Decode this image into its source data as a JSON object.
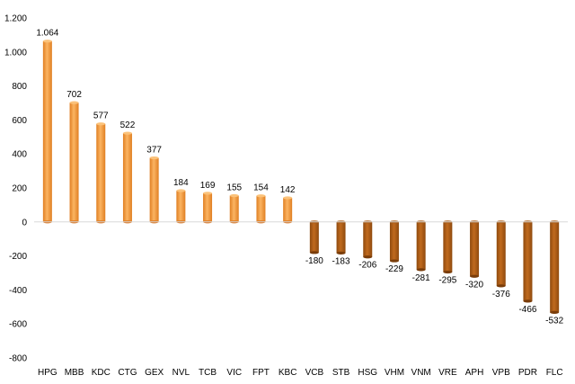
{
  "chart_data": {
    "type": "bar",
    "categories": [
      "HPG",
      "MBB",
      "KDC",
      "CTG",
      "GEX",
      "NVL",
      "TCB",
      "VIC",
      "FPT",
      "KBC",
      "VCB",
      "STB",
      "HSG",
      "VHM",
      "VNM",
      "VRE",
      "APH",
      "VPB",
      "PDR",
      "FLC"
    ],
    "values": [
      1064,
      702,
      577,
      522,
      377,
      184,
      169,
      155,
      154,
      142,
      -180,
      -183,
      -206,
      -229,
      -281,
      -295,
      -320,
      -376,
      -466,
      -532
    ],
    "data_labels": [
      "1.064",
      "702",
      "577",
      "522",
      "377",
      "184",
      "169",
      "155",
      "154",
      "142",
      "-180",
      "-183",
      "-206",
      "-229",
      "-281",
      "-295",
      "-320",
      "-376",
      "-466",
      "-532"
    ],
    "yticks": [
      -800,
      -600,
      -400,
      -200,
      0,
      200,
      400,
      600,
      800,
      1000,
      1200
    ],
    "ytick_labels": [
      "-800",
      "-600",
      "-400",
      "-200",
      "0",
      "200",
      "400",
      "600",
      "800",
      "1.000",
      "1.200"
    ],
    "ylim": [
      -800,
      1200
    ],
    "grid": false,
    "legend": false,
    "title": "",
    "xlabel": "",
    "ylabel": "",
    "colors": {
      "positive": "#f39a3a",
      "positive_light": "#fbc27a",
      "positive_dark": "#d9731c",
      "negative": "#a85a14",
      "negative_dark": "#7a3d0a",
      "axis": "#d9d9d9"
    }
  }
}
